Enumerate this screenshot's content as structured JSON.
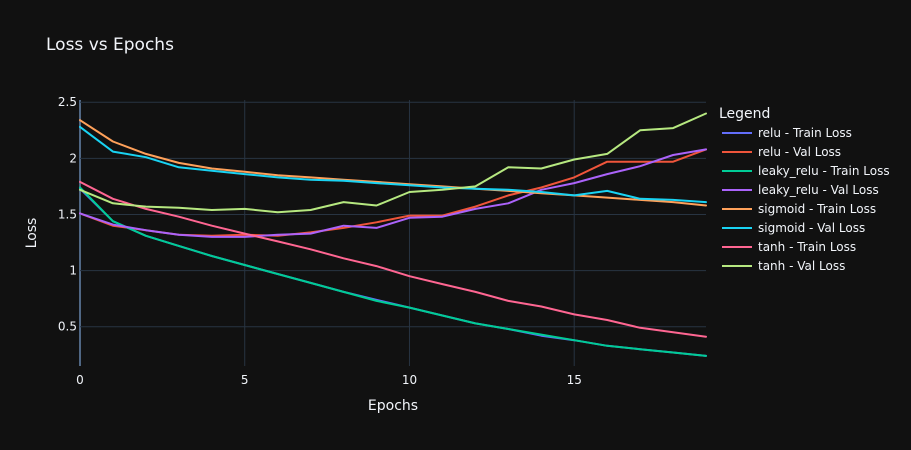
{
  "chart_data": {
    "type": "line",
    "title": "Loss vs Epochs",
    "xlabel": "Epochs",
    "ylabel": "Loss",
    "xlim": [
      0,
      19
    ],
    "ylim": [
      0.15,
      2.52
    ],
    "xticks": [
      0,
      5,
      10,
      15
    ],
    "xtick_labels": [
      "0",
      "5",
      "10",
      "15"
    ],
    "yticks": [
      0.5,
      1,
      1.5,
      2,
      2.5
    ],
    "ytick_labels": [
      "0.5",
      "1",
      "1.5",
      "2",
      "2.5"
    ],
    "grid": true,
    "legend_title": "Legend",
    "legend_position": "right",
    "x": [
      0,
      1,
      2,
      3,
      4,
      5,
      6,
      7,
      8,
      9,
      10,
      11,
      12,
      13,
      14,
      15,
      16,
      17,
      18,
      19
    ],
    "series": [
      {
        "name": "relu - Train Loss",
        "color": "#636efa",
        "values": [
          1.73,
          1.44,
          1.31,
          1.22,
          1.13,
          1.05,
          0.97,
          0.89,
          0.81,
          0.74,
          0.67,
          0.6,
          0.53,
          0.48,
          0.42,
          0.38,
          0.33,
          0.3,
          0.27,
          0.24
        ]
      },
      {
        "name": "relu - Val Loss",
        "color": "#ef553b",
        "values": [
          1.51,
          1.4,
          1.36,
          1.32,
          1.31,
          1.32,
          1.31,
          1.34,
          1.38,
          1.43,
          1.49,
          1.49,
          1.57,
          1.67,
          1.74,
          1.83,
          1.97,
          1.97,
          1.97,
          2.08
        ]
      },
      {
        "name": "leaky_relu - Train Loss",
        "color": "#00cc96",
        "values": [
          1.74,
          1.44,
          1.31,
          1.22,
          1.13,
          1.05,
          0.97,
          0.89,
          0.81,
          0.73,
          0.67,
          0.6,
          0.53,
          0.48,
          0.43,
          0.38,
          0.33,
          0.3,
          0.27,
          0.24
        ]
      },
      {
        "name": "leaky_relu - Val Loss",
        "color": "#ab63fa",
        "values": [
          1.51,
          1.41,
          1.36,
          1.32,
          1.3,
          1.3,
          1.32,
          1.33,
          1.4,
          1.38,
          1.47,
          1.48,
          1.55,
          1.6,
          1.72,
          1.78,
          1.86,
          1.93,
          2.03,
          2.08
        ]
      },
      {
        "name": "sigmoid - Train Loss",
        "color": "#ffa15a",
        "values": [
          2.34,
          2.15,
          2.04,
          1.96,
          1.91,
          1.88,
          1.85,
          1.83,
          1.81,
          1.79,
          1.77,
          1.75,
          1.73,
          1.71,
          1.69,
          1.67,
          1.65,
          1.63,
          1.61,
          1.58
        ]
      },
      {
        "name": "sigmoid - Val Loss",
        "color": "#19d3f3",
        "values": [
          2.28,
          2.06,
          2.01,
          1.92,
          1.89,
          1.86,
          1.83,
          1.81,
          1.8,
          1.78,
          1.76,
          1.74,
          1.73,
          1.72,
          1.7,
          1.67,
          1.71,
          1.64,
          1.63,
          1.61
        ]
      },
      {
        "name": "tanh - Train Loss",
        "color": "#ff6692",
        "values": [
          1.79,
          1.64,
          1.55,
          1.48,
          1.4,
          1.33,
          1.26,
          1.19,
          1.11,
          1.04,
          0.95,
          0.88,
          0.81,
          0.73,
          0.68,
          0.61,
          0.56,
          0.49,
          0.45,
          0.41
        ]
      },
      {
        "name": "tanh - Val Loss",
        "color": "#b6e880",
        "values": [
          1.72,
          1.6,
          1.57,
          1.56,
          1.54,
          1.55,
          1.52,
          1.54,
          1.61,
          1.58,
          1.7,
          1.72,
          1.75,
          1.92,
          1.91,
          1.99,
          2.04,
          2.25,
          2.27,
          2.4
        ]
      }
    ]
  }
}
